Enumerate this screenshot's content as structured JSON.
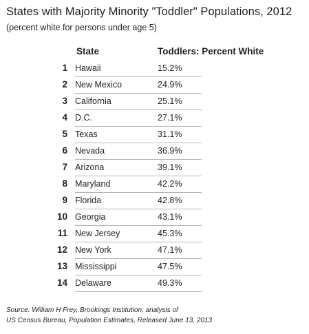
{
  "title": "States with Majority Minority \"Toddler\" Populations, 2012",
  "subtitle": "(percent white for persons under age 5)",
  "columns": {
    "state": "State",
    "value": "Toddlers: Percent White"
  },
  "rows": [
    {
      "rank": "1",
      "state": "Hawaii",
      "value": "15.2%"
    },
    {
      "rank": "2",
      "state": "New Mexico",
      "value": "24.9%"
    },
    {
      "rank": "3",
      "state": "California",
      "value": "25.1%"
    },
    {
      "rank": "4",
      "state": "D.C.",
      "value": "27.1%"
    },
    {
      "rank": "5",
      "state": "Texas",
      "value": "31.1%"
    },
    {
      "rank": "6",
      "state": "Nevada",
      "value": "36.9%"
    },
    {
      "rank": "7",
      "state": "Arizona",
      "value": "39.1%"
    },
    {
      "rank": "8",
      "state": "Maryland",
      "value": "42.2%"
    },
    {
      "rank": "9",
      "state": "Florida",
      "value": "42.8%"
    },
    {
      "rank": "10",
      "state": "Georgia",
      "value": "43.1%"
    },
    {
      "rank": "11",
      "state": "New Jersey",
      "value": "45.3%"
    },
    {
      "rank": "12",
      "state": "New York",
      "value": "47.1%"
    },
    {
      "rank": "13",
      "state": "Mississippi",
      "value": "47.5%"
    },
    {
      "rank": "14",
      "state": "Delaware",
      "value": "49.3%"
    }
  ],
  "source": {
    "line1": "Source: William H Frey, Brookings Institution, analysis of",
    "line2": "US Census Bureau, Population Estimates, Released June 13, 2013"
  }
}
